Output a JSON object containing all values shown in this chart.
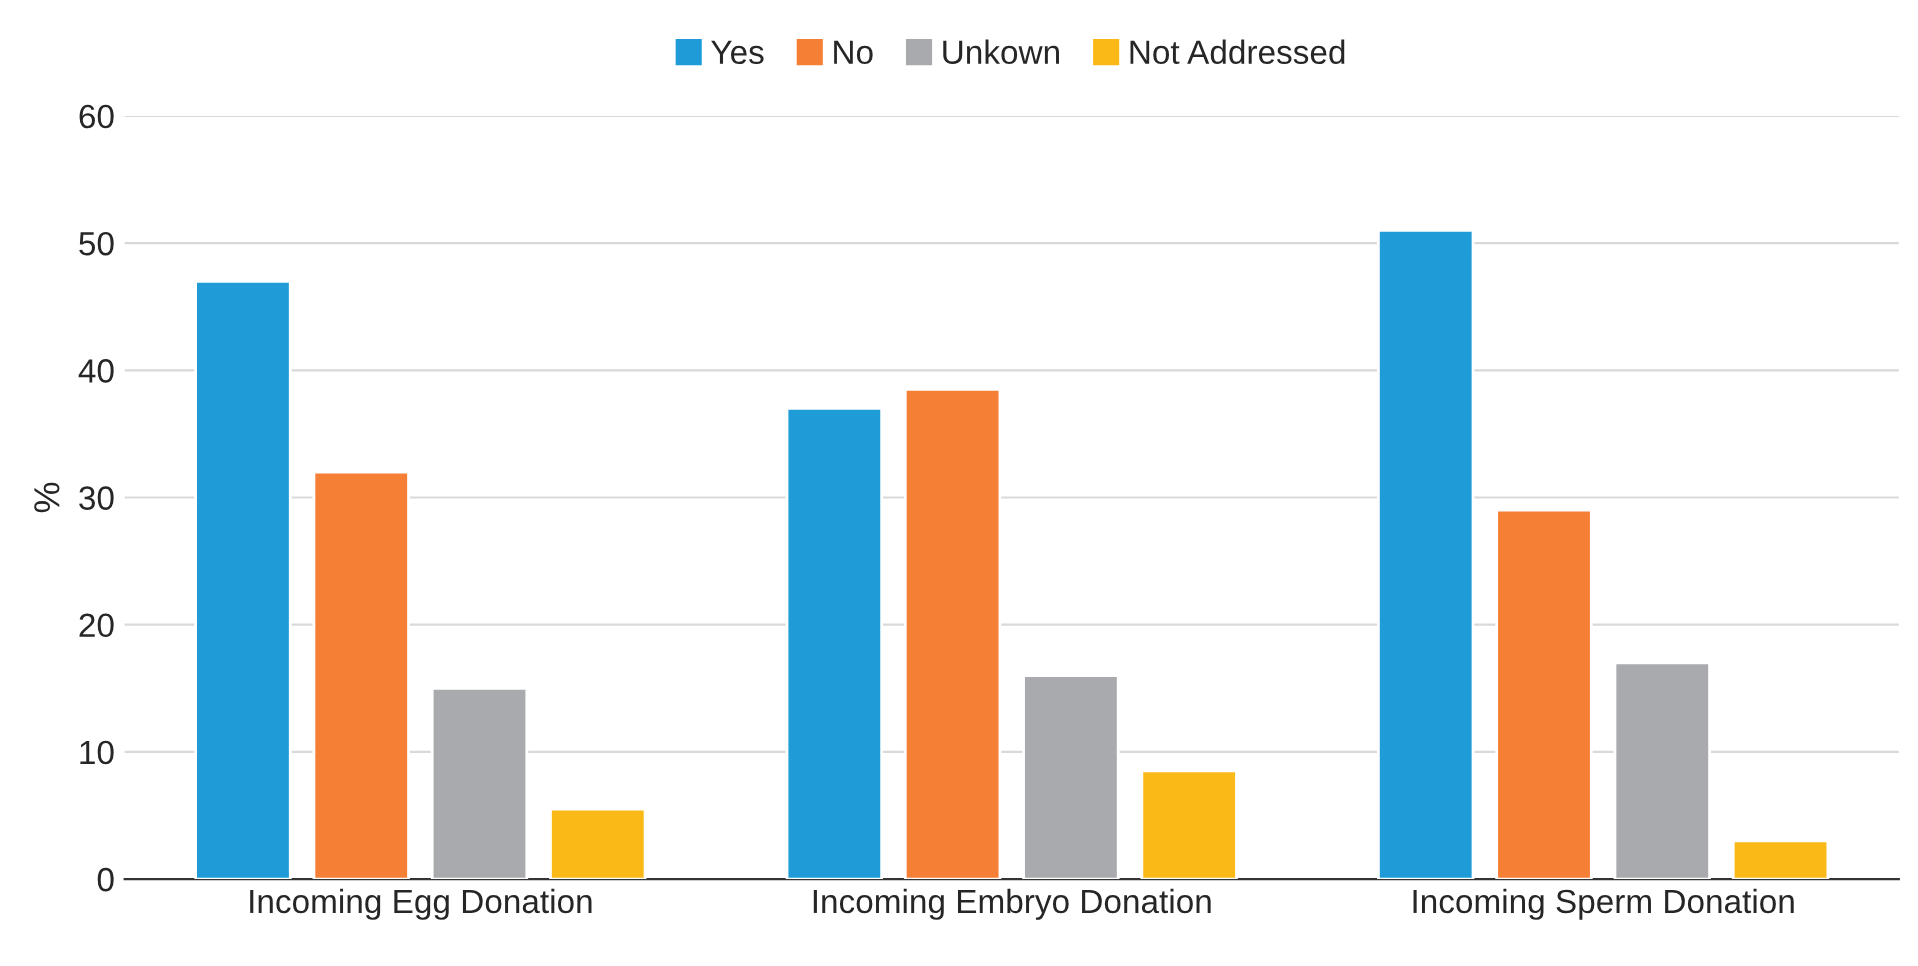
{
  "chart_data": {
    "type": "bar",
    "ylabel": "%",
    "categories": [
      "Incoming Egg Donation",
      "Incoming Embryo Donation",
      "Incoming Sperm Donation"
    ],
    "series": [
      {
        "name": "Yes",
        "color": "#1f9cd8",
        "values": [
          47,
          37,
          51
        ]
      },
      {
        "name": "No",
        "color": "#f47f35",
        "values": [
          32,
          38.5,
          29
        ]
      },
      {
        "name": "Unkown",
        "color": "#a9aaad",
        "values": [
          15,
          16,
          17
        ]
      },
      {
        "name": "Not Addressed",
        "color": "#fbb918",
        "values": [
          5.5,
          8.5,
          3
        ]
      }
    ],
    "ylim": [
      0,
      60
    ],
    "yticks": [
      0,
      10,
      20,
      30,
      40,
      50,
      60
    ],
    "grid": "y",
    "legend": "top"
  }
}
